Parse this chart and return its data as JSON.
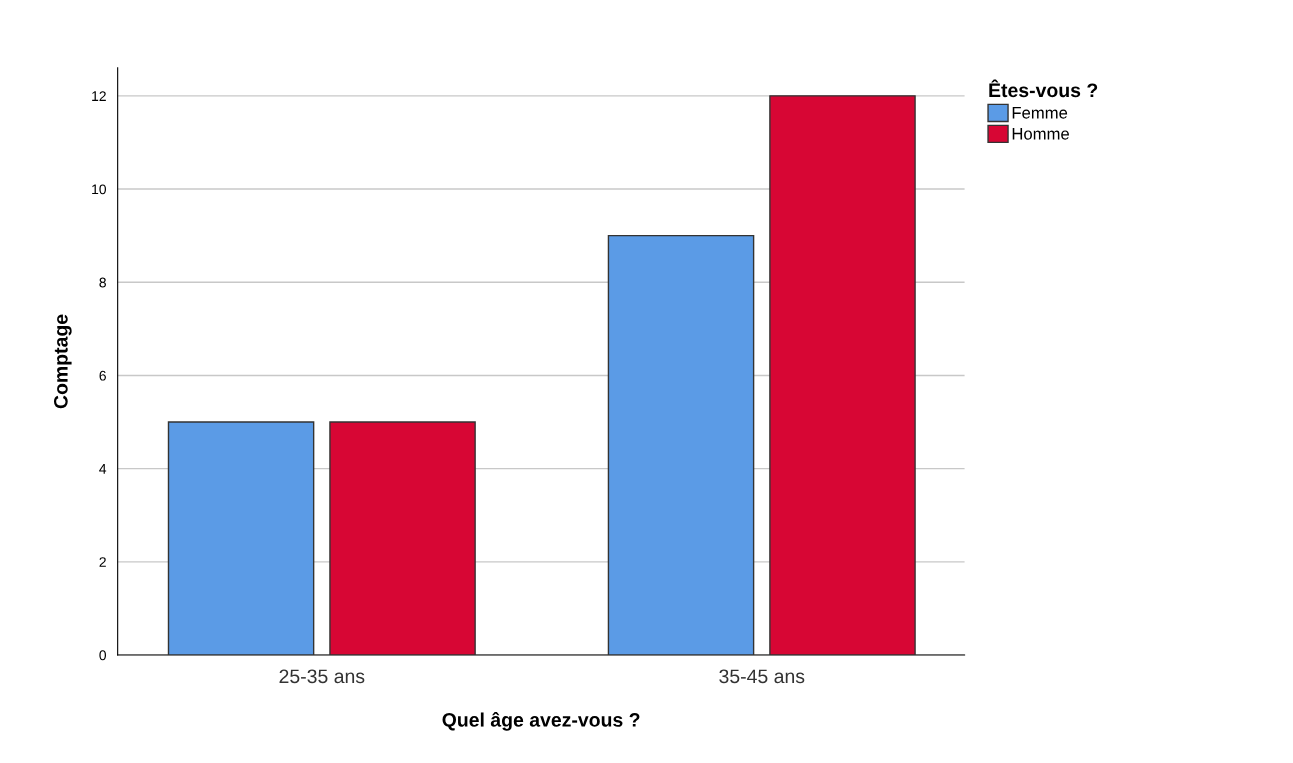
{
  "chart_data": {
    "type": "bar",
    "xlabel": "Quel âge avez-vous ?",
    "ylabel": "Comptage",
    "legend_title": "Êtes-vous ?",
    "categories": [
      "25-35 ans",
      "35-45 ans"
    ],
    "series": [
      {
        "name": "Femme",
        "color": "#5b9be6",
        "values": [
          5,
          9
        ]
      },
      {
        "name": "Homme",
        "color": "#d70634",
        "values": [
          5,
          12
        ]
      }
    ],
    "ylim": [
      0,
      12.6
    ],
    "yticks": [
      0,
      2,
      4,
      6,
      8,
      10,
      12
    ],
    "grid": "y",
    "legend": "top right"
  }
}
